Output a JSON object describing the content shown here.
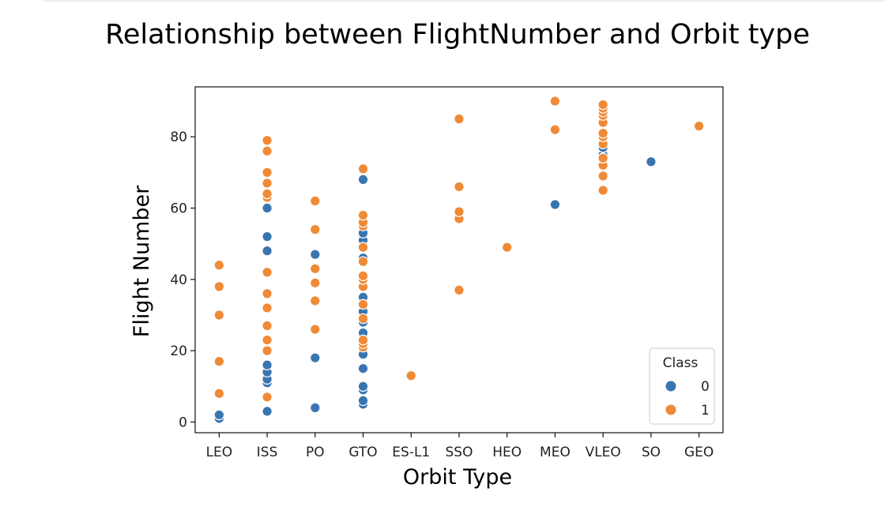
{
  "chart_data": {
    "type": "scatter",
    "title": "Relationship between FlightNumber and Orbit type",
    "xlabel": "Orbit Type",
    "ylabel": "Flight Number",
    "categories": [
      "LEO",
      "ISS",
      "PO",
      "GTO",
      "ES-L1",
      "SSO",
      "HEO",
      "MEO",
      "VLEO",
      "SO",
      "GEO"
    ],
    "ylim": [
      -3,
      94
    ],
    "yticks": [
      0,
      20,
      40,
      60,
      80
    ],
    "grid": false,
    "legend": {
      "title": "Class",
      "position": "lower-right",
      "entries": [
        {
          "label": "0",
          "color": "#3a75b0"
        },
        {
          "label": "1",
          "color": "#ef8a37"
        }
      ]
    },
    "series": [
      {
        "class": "0",
        "color": "#3a75b0",
        "points": [
          {
            "x": "LEO",
            "y": 1
          },
          {
            "x": "LEO",
            "y": 2
          },
          {
            "x": "ISS",
            "y": 3
          },
          {
            "x": "ISS",
            "y": 11
          },
          {
            "x": "ISS",
            "y": 12
          },
          {
            "x": "ISS",
            "y": 14
          },
          {
            "x": "ISS",
            "y": 16
          },
          {
            "x": "ISS",
            "y": 48
          },
          {
            "x": "ISS",
            "y": 52
          },
          {
            "x": "ISS",
            "y": 60
          },
          {
            "x": "PO",
            "y": 4
          },
          {
            "x": "PO",
            "y": 18
          },
          {
            "x": "PO",
            "y": 47
          },
          {
            "x": "GTO",
            "y": 5
          },
          {
            "x": "GTO",
            "y": 6
          },
          {
            "x": "GTO",
            "y": 9
          },
          {
            "x": "GTO",
            "y": 10
          },
          {
            "x": "GTO",
            "y": 15
          },
          {
            "x": "GTO",
            "y": 19
          },
          {
            "x": "GTO",
            "y": 25
          },
          {
            "x": "GTO",
            "y": 28
          },
          {
            "x": "GTO",
            "y": 31
          },
          {
            "x": "GTO",
            "y": 35
          },
          {
            "x": "GTO",
            "y": 46
          },
          {
            "x": "GTO",
            "y": 51
          },
          {
            "x": "GTO",
            "y": 53
          },
          {
            "x": "GTO",
            "y": 68
          },
          {
            "x": "MEO",
            "y": 61
          },
          {
            "x": "VLEO",
            "y": 75
          },
          {
            "x": "VLEO",
            "y": 77
          },
          {
            "x": "SO",
            "y": 73
          }
        ]
      },
      {
        "class": "1",
        "color": "#ef8a37",
        "points": [
          {
            "x": "LEO",
            "y": 8
          },
          {
            "x": "LEO",
            "y": 17
          },
          {
            "x": "LEO",
            "y": 30
          },
          {
            "x": "LEO",
            "y": 38
          },
          {
            "x": "LEO",
            "y": 44
          },
          {
            "x": "ISS",
            "y": 7
          },
          {
            "x": "ISS",
            "y": 20
          },
          {
            "x": "ISS",
            "y": 23
          },
          {
            "x": "ISS",
            "y": 27
          },
          {
            "x": "ISS",
            "y": 32
          },
          {
            "x": "ISS",
            "y": 36
          },
          {
            "x": "ISS",
            "y": 42
          },
          {
            "x": "ISS",
            "y": 63
          },
          {
            "x": "ISS",
            "y": 64
          },
          {
            "x": "ISS",
            "y": 67
          },
          {
            "x": "ISS",
            "y": 70
          },
          {
            "x": "ISS",
            "y": 76
          },
          {
            "x": "ISS",
            "y": 79
          },
          {
            "x": "PO",
            "y": 26
          },
          {
            "x": "PO",
            "y": 34
          },
          {
            "x": "PO",
            "y": 39
          },
          {
            "x": "PO",
            "y": 43
          },
          {
            "x": "PO",
            "y": 54
          },
          {
            "x": "PO",
            "y": 62
          },
          {
            "x": "GTO",
            "y": 21
          },
          {
            "x": "GTO",
            "y": 22
          },
          {
            "x": "GTO",
            "y": 23
          },
          {
            "x": "GTO",
            "y": 29
          },
          {
            "x": "GTO",
            "y": 33
          },
          {
            "x": "GTO",
            "y": 38
          },
          {
            "x": "GTO",
            "y": 40
          },
          {
            "x": "GTO",
            "y": 41
          },
          {
            "x": "GTO",
            "y": 45
          },
          {
            "x": "GTO",
            "y": 49
          },
          {
            "x": "GTO",
            "y": 55
          },
          {
            "x": "GTO",
            "y": 56
          },
          {
            "x": "GTO",
            "y": 58
          },
          {
            "x": "GTO",
            "y": 71
          },
          {
            "x": "ES-L1",
            "y": 13
          },
          {
            "x": "SSO",
            "y": 37
          },
          {
            "x": "SSO",
            "y": 57
          },
          {
            "x": "SSO",
            "y": 59
          },
          {
            "x": "SSO",
            "y": 66
          },
          {
            "x": "SSO",
            "y": 85
          },
          {
            "x": "HEO",
            "y": 49
          },
          {
            "x": "MEO",
            "y": 82
          },
          {
            "x": "MEO",
            "y": 90
          },
          {
            "x": "VLEO",
            "y": 65
          },
          {
            "x": "VLEO",
            "y": 69
          },
          {
            "x": "VLEO",
            "y": 72
          },
          {
            "x": "VLEO",
            "y": 74
          },
          {
            "x": "VLEO",
            "y": 78
          },
          {
            "x": "VLEO",
            "y": 80
          },
          {
            "x": "VLEO",
            "y": 81
          },
          {
            "x": "VLEO",
            "y": 84
          },
          {
            "x": "VLEO",
            "y": 86
          },
          {
            "x": "VLEO",
            "y": 87
          },
          {
            "x": "VLEO",
            "y": 88
          },
          {
            "x": "VLEO",
            "y": 89
          },
          {
            "x": "GEO",
            "y": 83
          }
        ]
      }
    ]
  }
}
